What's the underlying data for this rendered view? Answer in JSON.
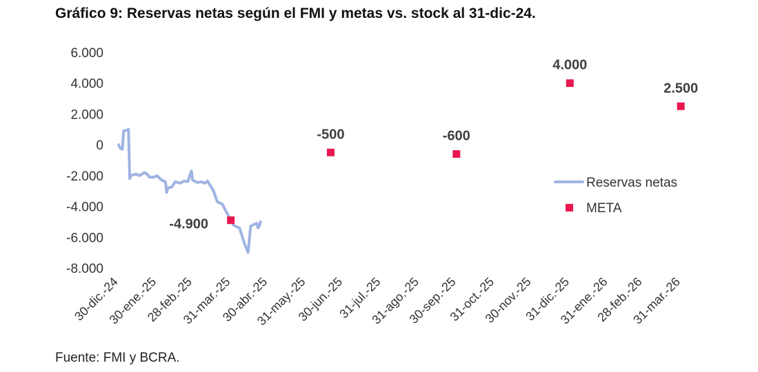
{
  "title": "Gráfico 9: Reservas netas según el FMI y metas vs. stock al 31-dic-24.",
  "source": "Fuente: FMI y BCRA.",
  "colors": {
    "line": "#9FB4E3",
    "meta": "#E8184E",
    "axis_text": "#333333",
    "label_text": "#404040"
  },
  "chart_data": {
    "type": "line",
    "ylim": [
      -8000,
      6000
    ],
    "yticks": [
      6000,
      4000,
      2000,
      0,
      -2000,
      -4000,
      -6000,
      -8000
    ],
    "ytick_labels": [
      "6.000",
      "4.000",
      "2.000",
      "0",
      "-2.000",
      "-4.000",
      "-6.000",
      "-8.000"
    ],
    "xlim": [
      "2024-12-30",
      "2026-04-10"
    ],
    "xticks": [
      "2024-12-30",
      "2025-01-30",
      "2025-02-28",
      "2025-03-31",
      "2025-04-30",
      "2025-05-31",
      "2025-06-30",
      "2025-07-31",
      "2025-08-31",
      "2025-09-30",
      "2025-10-31",
      "2025-11-30",
      "2025-12-31",
      "2026-01-31",
      "2026-02-28",
      "2026-03-31"
    ],
    "xtick_labels": [
      "30-dic.-24",
      "30-ene.-25",
      "28-feb.-25",
      "31-mar.-25",
      "30-abr.-25",
      "31-may.-25",
      "30-jun.-25",
      "31-jul.-25",
      "31-ago.-25",
      "30-sep.-25",
      "31-oct.-25",
      "30-nov.-25",
      "31-dic.-25",
      "31-ene.-26",
      "28-feb.-26",
      "31-mar.-26"
    ],
    "legend_position": "right",
    "grid": false,
    "series": [
      {
        "name": "Reservas netas",
        "kind": "line",
        "points": [
          [
            "2024-12-30",
            0
          ],
          [
            "2024-12-31",
            -200
          ],
          [
            "2025-01-02",
            -300
          ],
          [
            "2025-01-03",
            900
          ],
          [
            "2025-01-06",
            950
          ],
          [
            "2025-01-07",
            1000
          ],
          [
            "2025-01-08",
            -2200
          ],
          [
            "2025-01-09",
            -2000
          ],
          [
            "2025-01-13",
            -1900
          ],
          [
            "2025-01-16",
            -2000
          ],
          [
            "2025-01-20",
            -1800
          ],
          [
            "2025-01-22",
            -1900
          ],
          [
            "2025-01-24",
            -2100
          ],
          [
            "2025-01-28",
            -2100
          ],
          [
            "2025-01-30",
            -2000
          ],
          [
            "2025-02-03",
            -2300
          ],
          [
            "2025-02-06",
            -2400
          ],
          [
            "2025-02-07",
            -3100
          ],
          [
            "2025-02-08",
            -2800
          ],
          [
            "2025-02-11",
            -2750
          ],
          [
            "2025-02-14",
            -2400
          ],
          [
            "2025-02-18",
            -2500
          ],
          [
            "2025-02-21",
            -2350
          ],
          [
            "2025-02-24",
            -2400
          ],
          [
            "2025-02-27",
            -1700
          ],
          [
            "2025-02-28",
            -2300
          ],
          [
            "2025-03-04",
            -2450
          ],
          [
            "2025-03-07",
            -2400
          ],
          [
            "2025-03-10",
            -2500
          ],
          [
            "2025-03-12",
            -2350
          ],
          [
            "2025-03-14",
            -2600
          ],
          [
            "2025-03-17",
            -3000
          ],
          [
            "2025-03-20",
            -3700
          ],
          [
            "2025-03-24",
            -3850
          ],
          [
            "2025-03-27",
            -4300
          ],
          [
            "2025-03-31",
            -4900
          ],
          [
            "2025-04-02",
            -5200
          ],
          [
            "2025-04-04",
            -5300
          ],
          [
            "2025-04-07",
            -5400
          ],
          [
            "2025-04-09",
            -5900
          ],
          [
            "2025-04-11",
            -6400
          ],
          [
            "2025-04-14",
            -7000
          ],
          [
            "2025-04-16",
            -5300
          ],
          [
            "2025-04-18",
            -5200
          ],
          [
            "2025-04-21",
            -5100
          ],
          [
            "2025-04-22",
            -5400
          ],
          [
            "2025-04-23",
            -5300
          ],
          [
            "2025-04-24",
            -5000
          ]
        ]
      },
      {
        "name": "META",
        "kind": "marker",
        "points": [
          {
            "x": "2025-03-31",
            "y": -4900,
            "label": "-4.900"
          },
          {
            "x": "2025-06-20",
            "y": -500,
            "label": "-500"
          },
          {
            "x": "2025-09-30",
            "y": -600,
            "label": "-600"
          },
          {
            "x": "2025-12-31",
            "y": 4000,
            "label": "4.000"
          },
          {
            "x": "2026-03-31",
            "y": 2500,
            "label": "2.500"
          }
        ]
      }
    ]
  }
}
